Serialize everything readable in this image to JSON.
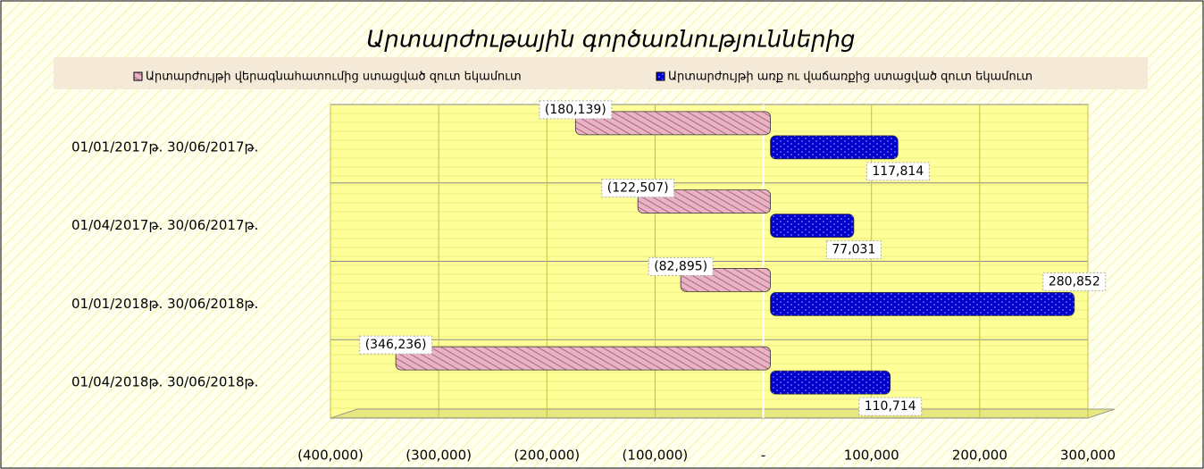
{
  "chart_data": {
    "type": "bar",
    "orientation": "horizontal",
    "title": "Արտարժութային գործառնություններից",
    "categories": [
      "01/01/2017թ.  30/06/2017թ.",
      "01/04/2017թ.  30/06/2017թ.",
      "01/01/2018թ.  30/06/2018թ.",
      "01/04/2018թ.  30/06/2018թ."
    ],
    "series": [
      {
        "name": "Արտարժույթի վերագնահատումից ստացված զուտ եկամուտ",
        "color": "#d9a0b4",
        "values": [
          -180139,
          -122507,
          -82895,
          -346236
        ],
        "value_labels": [
          "(180,139)",
          "(122,507)",
          "(82,895)",
          "(346,236)"
        ]
      },
      {
        "name": "Արտարժույթի առք ու վաճառքից ստացված զուտ եկամուտ",
        "color": "#0000cc",
        "values": [
          117814,
          77031,
          280852,
          110714
        ],
        "value_labels": [
          "117,814",
          "77,031",
          "280,852",
          "110,714"
        ]
      }
    ],
    "xlim": [
      -400000,
      300000
    ],
    "xticks": [
      {
        "value": -400000,
        "label": "(400,000)"
      },
      {
        "value": -300000,
        "label": "(300,000)"
      },
      {
        "value": -200000,
        "label": "(200,000)"
      },
      {
        "value": -100000,
        "label": "(100,000)"
      },
      {
        "value": 0,
        "label": "-"
      },
      {
        "value": 100000,
        "label": "100,000"
      },
      {
        "value": 200000,
        "label": "200,000"
      },
      {
        "value": 300000,
        "label": "300,000"
      }
    ],
    "grid": true,
    "legend": "top"
  }
}
